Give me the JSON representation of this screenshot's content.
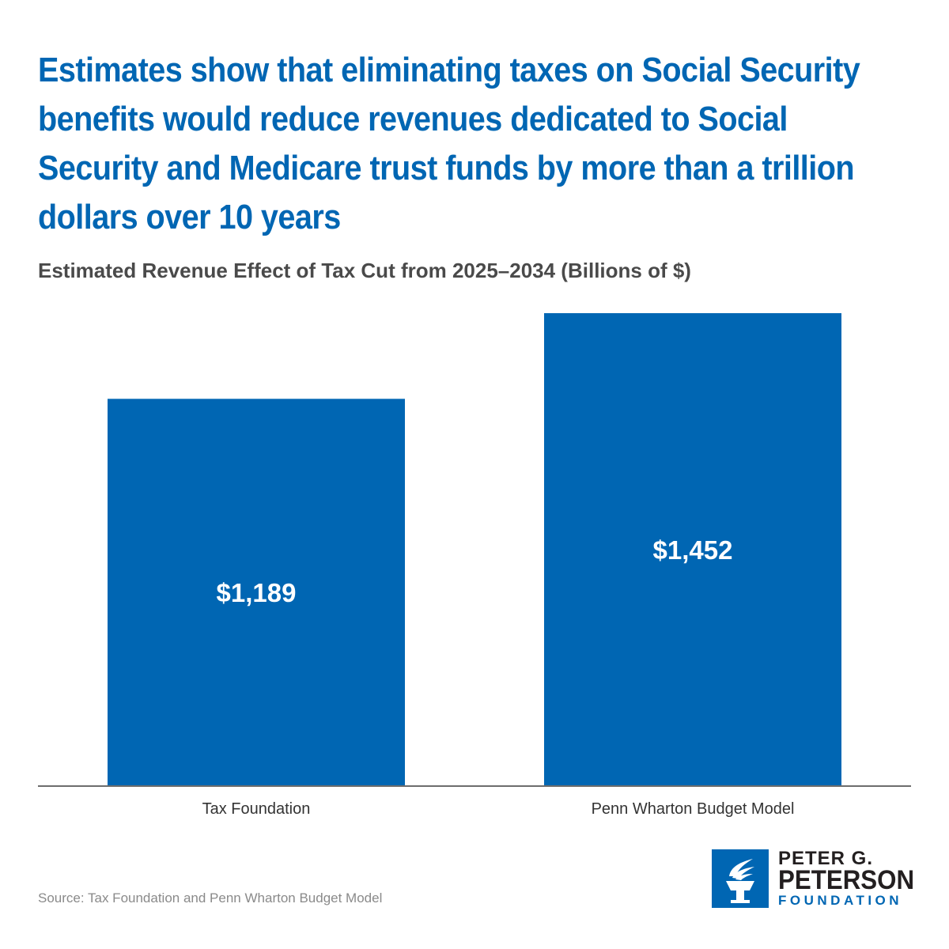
{
  "colors": {
    "bar": "#0066b3",
    "headline": "#0066b3",
    "axis": "#6d6d6d",
    "logo_text": "#231f20",
    "logo_accent": "#0066b3"
  },
  "headline": "Estimates show that eliminating taxes on Social Security benefits would reduce revenues dedicated to Social Security and Medicare trust funds by more than a trillion dollars over 10 years",
  "source": "Source: Tax Foundation and Penn Wharton Budget Model",
  "logo": {
    "icon": "torch-icon",
    "line1": "PETER G.",
    "line2": "PETERSON",
    "line3": "FOUNDATION"
  },
  "chart_data": {
    "type": "bar",
    "title": "Estimated Revenue Effect of Tax Cut from 2025–2034 (Billions of $)",
    "categories": [
      "Tax Foundation",
      "Penn Wharton Budget Model"
    ],
    "values": [
      1189,
      1452
    ],
    "data_labels": [
      "$1,189",
      "$1,452"
    ],
    "xlabel": "",
    "ylabel": "",
    "ylim": [
      0,
      1452
    ],
    "grid": false,
    "legend": "none"
  }
}
